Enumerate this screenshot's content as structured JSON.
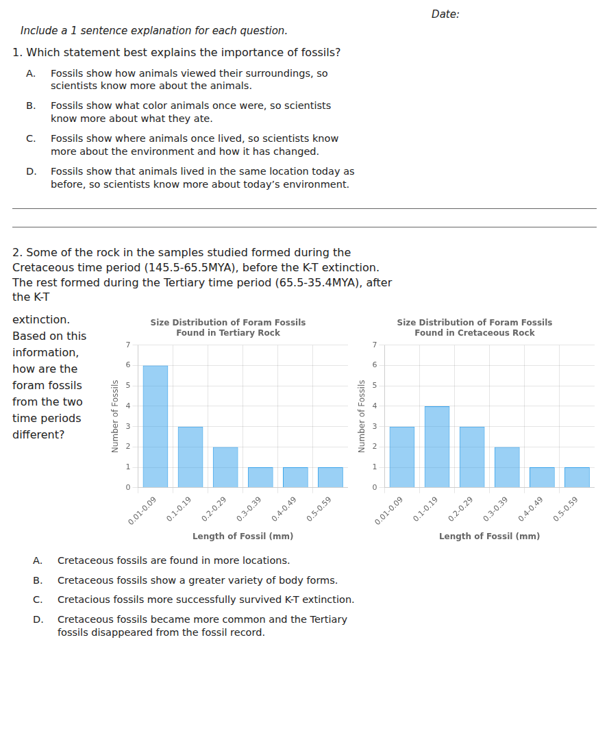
{
  "date": "Date:",
  "instruction": "Include a 1 sentence explanation for each question.",
  "questions": [
    {
      "text": "1. Which statement best explains the importance of fossils?",
      "options": [
        {
          "label": "A.",
          "text": "Fossils show how animals viewed their surroundings, so\nscientists know more about the animals."
        },
        {
          "label": "B.",
          "text": "Fossils show what color animals once were, so scientists\nknow more about what they ate."
        },
        {
          "label": "C.",
          "text": "Fossils show where animals once lived, so scientists know\nmore about the environment and how it has changed."
        },
        {
          "label": "D.",
          "text": "Fossils show that animals lived in the same location today as\nbefore, so scientists know more about today’s environment."
        }
      ]
    },
    {
      "text": "2. Some of the rock in the samples studied formed during the\nCretaceous time period (145.5-65.5MYA), before the K-T extinction.\nThe rest formed during the Tertiary time period (65.5-35.4MYA), after\nthe K-T",
      "side_text": "extinction.\nBased on this\ninformation,\nhow are the\nforam fossils\nfrom the two\ntime periods\ndifferent?",
      "options": [
        {
          "label": "A.",
          "text": "Cretaceous fossils are found in more locations."
        },
        {
          "label": "B.",
          "text": "Cretaceous fossils show a greater variety of body forms."
        },
        {
          "label": "C.",
          "text": "Cretacious fossils more successfully survived K-T extinction."
        },
        {
          "label": "D.",
          "text": "Cretaceous fossils became more common and the Tertiary\nfossils disappeared from the fossil record."
        }
      ]
    }
  ],
  "chart_data": [
    {
      "type": "bar",
      "title": "Size Distribution of Foram Fossils\nFound in Tertiary Rock",
      "xlabel": "Length of Fossil (mm)",
      "ylabel": "Number of Fossils",
      "categories": [
        "0.01-0.09",
        "0.1-0.19",
        "0.2-0.29",
        "0.3-0.39",
        "0.4-0.49",
        "0.5-0.59"
      ],
      "values": [
        6,
        3,
        2,
        1,
        1,
        1
      ],
      "ylim": [
        0,
        7
      ],
      "yticks": [
        0,
        1,
        2,
        3,
        4,
        5,
        6,
        7
      ],
      "grid": true
    },
    {
      "type": "bar",
      "title": "Size Distribution of Foram Fossils\nFound in Cretaceous Rock",
      "xlabel": "Length of Fossil (mm)",
      "ylabel": "Number of Fossils",
      "categories": [
        "0.01-0.09",
        "0.1-0.19",
        "0.2-0.29",
        "0.3-0.39",
        "0.4-0.49",
        "0.5-0.59"
      ],
      "values": [
        3,
        4,
        3,
        2,
        1,
        1
      ],
      "ylim": [
        0,
        7
      ],
      "yticks": [
        0,
        1,
        2,
        3,
        4,
        5,
        6,
        7
      ],
      "grid": true
    }
  ]
}
